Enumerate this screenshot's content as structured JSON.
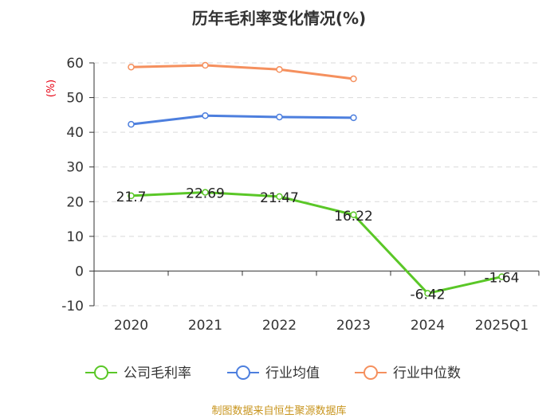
{
  "chart_data": {
    "type": "line",
    "title": "历年毛利率变化情况(%)",
    "ylabel": "(%)",
    "xlabel": "",
    "categories": [
      "2020",
      "2021",
      "2022",
      "2023",
      "2024",
      "2025Q1"
    ],
    "ylim": [
      -10,
      60
    ],
    "yticks": [
      60,
      50,
      40,
      30,
      20,
      10,
      0,
      -10
    ],
    "grid": true,
    "legend_position": "bottom",
    "series": [
      {
        "name": "公司毛利率",
        "color": "#5ac727",
        "values": [
          21.7,
          22.69,
          21.47,
          16.22,
          -6.42,
          -1.64
        ],
        "labels": [
          "21.7",
          "22.69",
          "21.47",
          "16.22",
          "-6.42",
          "-1.64"
        ]
      },
      {
        "name": "行业均值",
        "color": "#4d7fde",
        "values": [
          42.3,
          44.8,
          44.4,
          44.2,
          null,
          null
        ]
      },
      {
        "name": "行业中位数",
        "color": "#f5905e",
        "values": [
          58.8,
          59.3,
          58.1,
          55.4,
          null,
          null
        ]
      }
    ],
    "source": "制图数据来自恒生聚源数据库"
  }
}
